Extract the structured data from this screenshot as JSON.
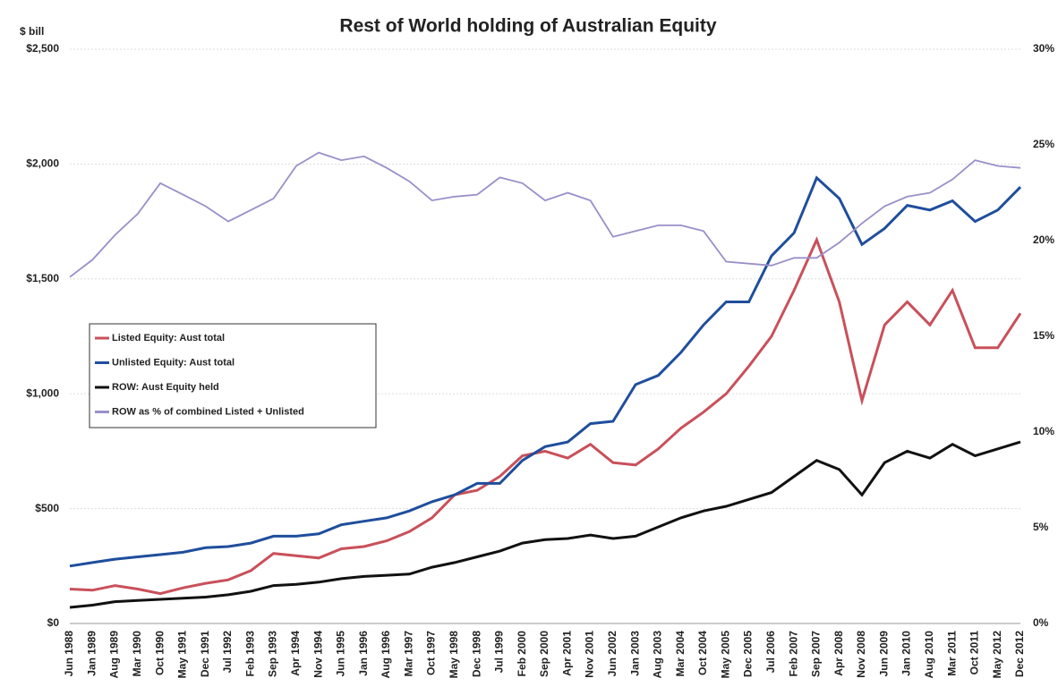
{
  "chart_data": {
    "type": "line",
    "title": "Rest of World holding of Australian Equity",
    "y_label": "$ bill",
    "categories": [
      "Jun 1988",
      "Jan 1989",
      "Aug 1989",
      "Mar 1990",
      "Oct 1990",
      "May 1991",
      "Dec 1991",
      "Jul 1992",
      "Feb 1993",
      "Sep 1993",
      "Apr 1994",
      "Nov 1994",
      "Jun 1995",
      "Jan 1996",
      "Aug 1996",
      "Mar 1997",
      "Oct 1997",
      "May 1998",
      "Dec 1998",
      "Jul 1999",
      "Feb 2000",
      "Sep 2000",
      "Apr 2001",
      "Nov 2001",
      "Jun 2002",
      "Jan 2003",
      "Aug 2003",
      "Mar 2004",
      "Oct 2004",
      "May 2005",
      "Dec 2005",
      "Jul 2006",
      "Feb 2007",
      "Sep 2007",
      "Apr 2008",
      "Nov 2008",
      "Jun 2009",
      "Jan 2010",
      "Aug 2010",
      "Mar 2011",
      "Oct 2011",
      "May 2012",
      "Dec 2012"
    ],
    "series": [
      {
        "name": "Listed Equity: Aust total",
        "color": "#c9505a",
        "values": [
          150,
          145,
          165,
          150,
          130,
          155,
          175,
          190,
          230,
          305,
          295,
          285,
          325,
          335,
          360,
          400,
          460,
          560,
          580,
          640,
          730,
          750,
          720,
          780,
          700,
          690,
          760,
          850,
          920,
          1000,
          1120,
          1250,
          1450,
          1670,
          1400,
          970,
          1300,
          1400,
          1300,
          1450,
          1200,
          1200,
          1350
        ]
      },
      {
        "name": "Unlisted Equity: Aust total",
        "color": "#1f4e9c",
        "values": [
          250,
          265,
          280,
          290,
          300,
          310,
          330,
          335,
          350,
          380,
          380,
          390,
          430,
          445,
          460,
          490,
          530,
          560,
          610,
          610,
          710,
          770,
          790,
          870,
          880,
          1040,
          1080,
          1180,
          1300,
          1400,
          1400,
          1600,
          1700,
          1940,
          1850,
          1650,
          1720,
          1820,
          1800,
          1840,
          1750,
          1800,
          1900
        ]
      },
      {
        "name": "ROW: Aust Equity held",
        "color": "#111111",
        "values": [
          70,
          80,
          95,
          100,
          105,
          110,
          115,
          125,
          140,
          165,
          170,
          180,
          195,
          205,
          210,
          215,
          245,
          265,
          290,
          315,
          350,
          365,
          370,
          385,
          370,
          380,
          420,
          460,
          490,
          510,
          540,
          570,
          640,
          710,
          670,
          560,
          700,
          750,
          720,
          780,
          730,
          760,
          790
        ]
      },
      {
        "name": "ROW as % of combined Listed + Unlisted",
        "color": "#9b8fc9",
        "axis": "y2",
        "values": [
          18.1,
          19,
          20.3,
          21.4,
          23,
          22.4,
          21.8,
          21,
          21.6,
          22.2,
          23.9,
          24.6,
          24.2,
          24.4,
          23.8,
          23.1,
          22.1,
          22.3,
          22.4,
          23.3,
          23,
          22.1,
          22.5,
          22.1,
          20.2,
          20.5,
          20.8,
          20.8,
          20.5,
          18.9,
          18.8,
          18.7,
          19.1,
          19.1,
          19.9,
          20.9,
          21.8,
          22.3,
          22.5,
          23.2,
          24.2,
          23.9,
          23.8
        ]
      }
    ],
    "ylim": [
      0,
      2500
    ],
    "yticks": [
      {
        "value": 0,
        "label": "$0"
      },
      {
        "value": 500,
        "label": "$500"
      },
      {
        "value": 1000,
        "label": "$1,000"
      },
      {
        "value": 1500,
        "label": "$1,500"
      },
      {
        "value": 2000,
        "label": "$2,000"
      },
      {
        "value": 2500,
        "label": "$2,500"
      }
    ],
    "y2lim": [
      0,
      30
    ],
    "y2ticks": [
      {
        "value": 0,
        "label": "0%"
      },
      {
        "value": 5,
        "label": "5%"
      },
      {
        "value": 10,
        "label": "10%"
      },
      {
        "value": 15,
        "label": "15%"
      },
      {
        "value": 20,
        "label": "20%"
      },
      {
        "value": 25,
        "label": "25%"
      },
      {
        "value": 30,
        "label": "30%"
      }
    ],
    "grid": true,
    "legend": "left"
  }
}
